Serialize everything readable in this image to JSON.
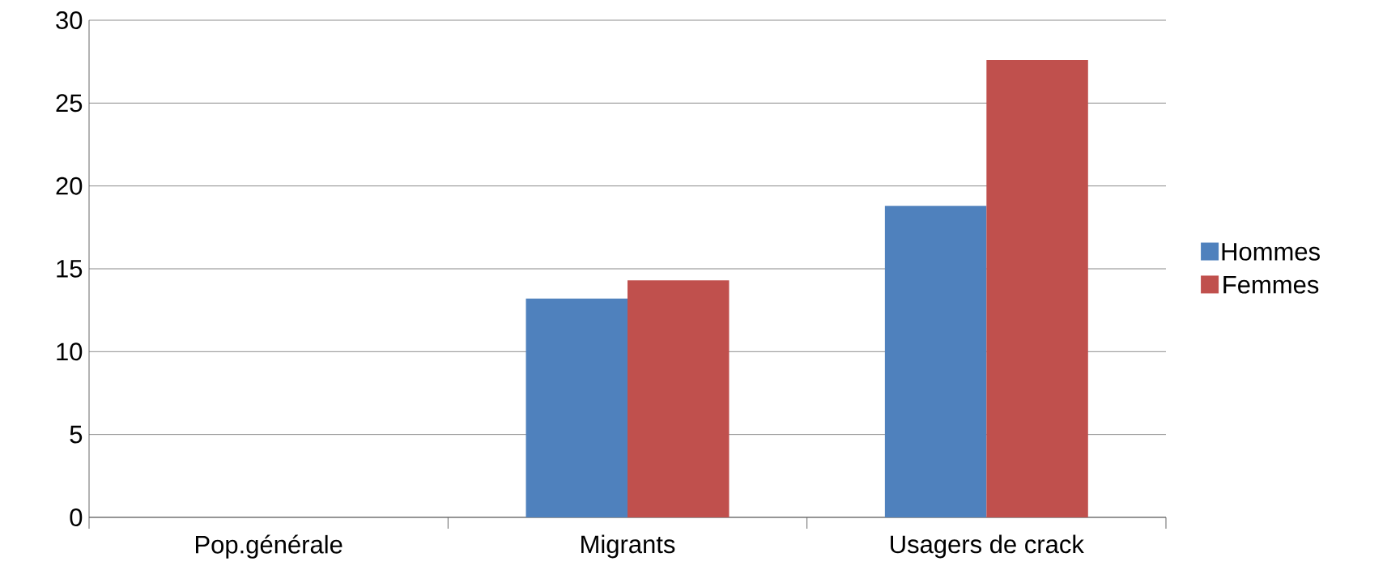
{
  "chart_data": {
    "type": "bar",
    "categories": [
      "Pop.générale",
      "Migrants",
      "Usagers de crack"
    ],
    "series": [
      {
        "name": "Hommes",
        "color": "#4f81bd",
        "values": [
          0,
          13.2,
          18.8
        ]
      },
      {
        "name": "Femmes",
        "color": "#c0504d",
        "values": [
          0,
          14.3,
          27.6
        ]
      }
    ],
    "ylim": [
      0,
      30
    ],
    "yticks": [
      0,
      5,
      10,
      15,
      20,
      25,
      30
    ],
    "grid": "y",
    "legend": "right"
  }
}
